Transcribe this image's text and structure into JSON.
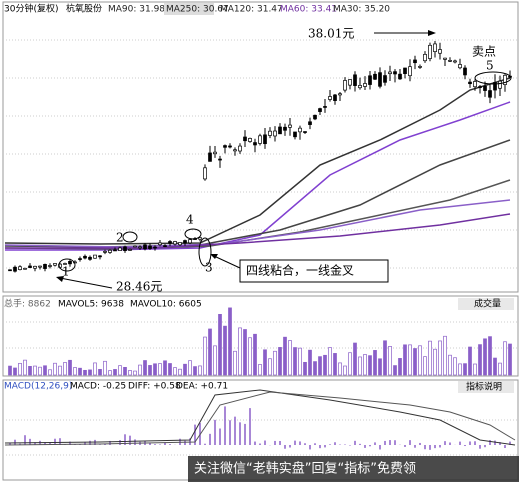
{
  "header": {
    "period": "30分钟(复权)",
    "stock": "杭氧股份",
    "ma": [
      "MA90: 31.98",
      "MA250: 30.67",
      "MA120: 31.47",
      "MA60: 33.41",
      "MA30: 35.20"
    ]
  },
  "annotations": {
    "high": "38.01元",
    "sell": "卖点",
    "point5": "5",
    "point1": "1",
    "point2": "2",
    "point3": "3",
    "point4": "4",
    "low": "28.46元",
    "note": "四线粘合，一线金叉"
  },
  "volume": {
    "total": "总手: 8862",
    "mavol5": "MAVOL5: 9638",
    "mavol10": "MAVOL10: 6605",
    "tab": "成交量"
  },
  "macd": {
    "name": "MACD(12,26,9)",
    "macd": "MACD: -0.25",
    "diff": "DIFF: +0.58",
    "dea": "DEA: +0.71",
    "tab": "指标说明"
  },
  "watermark": "关注微信“老韩实盘”回复“指标”免费领"
}
